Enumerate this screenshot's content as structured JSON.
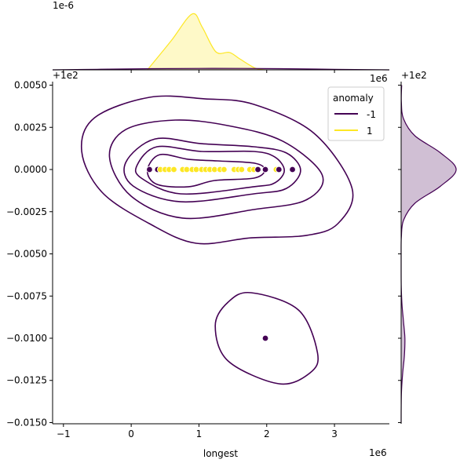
{
  "chart_data": {
    "type": "scatter",
    "subtype": "jointplot-kde",
    "xlabel": "longest",
    "ylabel": "",
    "x_offset_text": "1e6",
    "y_offset_text": "+1e2",
    "top_marginal_offset_text": "1e-6",
    "top_marginal_x_offset_text": "+1e2",
    "top_marginal_x_scale_text": "1e6",
    "right_marginal_offset_text": "+1e2",
    "xlim": [
      -1.16,
      3.81
    ],
    "ylim": [
      -0.01507,
      0.00521
    ],
    "xticks": [
      -1,
      0,
      1,
      2,
      3
    ],
    "xtick_labels": [
      "−1",
      "0",
      "1",
      "2",
      "3"
    ],
    "yticks": [
      0.005,
      0.0025,
      0,
      -0.0025,
      -0.005,
      -0.0075,
      -0.01,
      -0.0125,
      -0.015
    ],
    "ytick_labels": [
      "0.0050",
      "0.0025",
      "0.0000",
      "−0.0025",
      "−0.0050",
      "−0.0075",
      "−0.0100",
      "−0.0125",
      "−0.0150"
    ],
    "grid": false,
    "legend": {
      "title": "anomaly",
      "placement": "top-right",
      "entries": [
        {
          "label": "-1",
          "color": "#440154"
        },
        {
          "label": "1",
          "color": "#fde725"
        }
      ]
    },
    "series": [
      {
        "name": "-1",
        "color": "#440154",
        "points": [
          [
            0.27,
            0
          ],
          [
            0.39,
            0
          ],
          [
            1.87,
            0
          ],
          [
            1.98,
            0
          ],
          [
            2.18,
            0
          ],
          [
            2.38,
            0
          ],
          [
            1.98,
            -0.01
          ]
        ],
        "kde_contours": [
          [
            [
              -0.73,
              0.00107
            ],
            [
              -0.54,
              0.00307
            ],
            [
              0.27,
              0.00428
            ],
            [
              1.08,
              0.00419
            ],
            [
              1.81,
              0.00386
            ],
            [
              2.7,
              0.00214
            ],
            [
              3.26,
              -0.00112
            ],
            [
              3.05,
              -0.00321
            ],
            [
              2.58,
              -0.00391
            ],
            [
              1.77,
              -0.00405
            ],
            [
              0.96,
              -0.00437
            ],
            [
              0.27,
              -0.00321
            ],
            [
              -0.43,
              -0.00135
            ]
          ],
          [
            [
              -0.32,
              0.00074
            ],
            [
              -0.08,
              0.00237
            ],
            [
              0.65,
              0.00293
            ],
            [
              1.43,
              0.0026
            ],
            [
              2.24,
              0.00167
            ],
            [
              2.82,
              -0.00033
            ],
            [
              2.58,
              -0.00181
            ],
            [
              1.81,
              -0.00237
            ],
            [
              0.76,
              -0.00288
            ],
            [
              0.0,
              -0.00158
            ]
          ],
          [
            [
              -0.08,
              0.00042
            ],
            [
              0.35,
              0.00181
            ],
            [
              1.04,
              0.00153
            ],
            [
              1.81,
              0.00135
            ],
            [
              2.29,
              0.00098
            ],
            [
              2.5,
              -5e-05
            ],
            [
              2.29,
              -0.00112
            ],
            [
              1.81,
              -0.00144
            ],
            [
              0.73,
              -0.00191
            ],
            [
              0.03,
              -0.00098
            ]
          ],
          [
            [
              0.09,
              0.00028
            ],
            [
              0.38,
              0.00135
            ],
            [
              1.04,
              0.00107
            ],
            [
              1.81,
              0.00107
            ],
            [
              2.12,
              0.00074
            ],
            [
              2.26,
              -5e-05
            ],
            [
              2.12,
              -0.00079
            ],
            [
              1.81,
              -0.00102
            ],
            [
              0.73,
              -0.00144
            ],
            [
              0.15,
              -0.00051
            ]
          ],
          [
            [
              0.24,
              -5e-05
            ],
            [
              0.42,
              0.00088
            ],
            [
              0.85,
              0.0006
            ],
            [
              1.27,
              0.00051
            ],
            [
              1.83,
              0.00037
            ],
            [
              1.97,
              -5e-05
            ],
            [
              1.81,
              -0.00051
            ],
            [
              1.23,
              -0.00065
            ],
            [
              0.85,
              -0.00102
            ],
            [
              0.38,
              -0.00088
            ]
          ],
          [
            [
              1.77,
              -0.0073
            ],
            [
              1.43,
              -0.00786
            ],
            [
              1.24,
              -0.00926
            ],
            [
              1.43,
              -0.01135
            ],
            [
              2.18,
              -0.0127
            ],
            [
              2.64,
              -0.01205
            ],
            [
              2.75,
              -0.01088
            ],
            [
              2.47,
              -0.00833
            ]
          ]
        ],
        "top_marginal_density": [
          [
            -1.16,
            0.0
          ],
          [
            -0.5,
            0.01
          ],
          [
            0.3,
            0.02
          ],
          [
            1.2,
            0.025
          ],
          [
            2.2,
            0.02
          ],
          [
            3.0,
            0.01
          ],
          [
            3.81,
            0.0
          ]
        ],
        "right_marginal_density": [
          [
            0.005,
            0.01
          ],
          [
            0.004,
            0.004
          ],
          [
            0.003,
            0.044
          ],
          [
            0.002,
            0.25
          ],
          [
            0.001,
            0.71
          ],
          [
            0,
            1
          ],
          [
            -0.001,
            0.71
          ],
          [
            -0.002,
            0.25
          ],
          [
            -0.003,
            0.044
          ],
          [
            -0.004,
            0.004
          ],
          [
            -0.005,
            0
          ],
          [
            -0.006,
            0
          ],
          [
            -0.007,
            0.003
          ],
          [
            -0.008,
            0.015
          ],
          [
            -0.009,
            0.043
          ],
          [
            -0.01,
            0.068
          ],
          [
            -0.011,
            0.06
          ],
          [
            -0.012,
            0.03
          ],
          [
            -0.013,
            0.008
          ],
          [
            -0.014,
            0.001
          ],
          [
            -0.015,
            0
          ]
        ]
      },
      {
        "name": "1",
        "color": "#fde725",
        "points": [
          [
            0.43,
            0
          ],
          [
            0.5,
            0
          ],
          [
            0.56,
            0
          ],
          [
            0.63,
            0
          ],
          [
            0.76,
            0
          ],
          [
            0.82,
            0
          ],
          [
            0.9,
            0
          ],
          [
            0.96,
            0
          ],
          [
            1.04,
            0
          ],
          [
            1.1,
            0
          ],
          [
            1.16,
            0
          ],
          [
            1.23,
            0
          ],
          [
            1.31,
            0
          ],
          [
            1.37,
            0
          ],
          [
            1.52,
            0
          ],
          [
            1.58,
            0
          ],
          [
            1.63,
            0
          ],
          [
            1.75,
            0
          ],
          [
            1.81,
            0
          ],
          [
            1.87,
            0
          ],
          [
            2.14,
            0
          ]
        ],
        "top_marginal_density": [
          [
            0.24,
            0
          ],
          [
            0.59,
            0.5
          ],
          [
            0.9,
            0.96
          ],
          [
            1.05,
            0.73
          ],
          [
            1.25,
            0.31
          ],
          [
            1.45,
            0.3
          ],
          [
            1.6,
            0.19
          ],
          [
            1.83,
            0.03
          ],
          [
            1.98,
            0
          ]
        ]
      }
    ],
    "top_marginal_ylim": [
      0,
      1.2
    ],
    "right_marginal_xlim": [
      0,
      1.27
    ]
  }
}
